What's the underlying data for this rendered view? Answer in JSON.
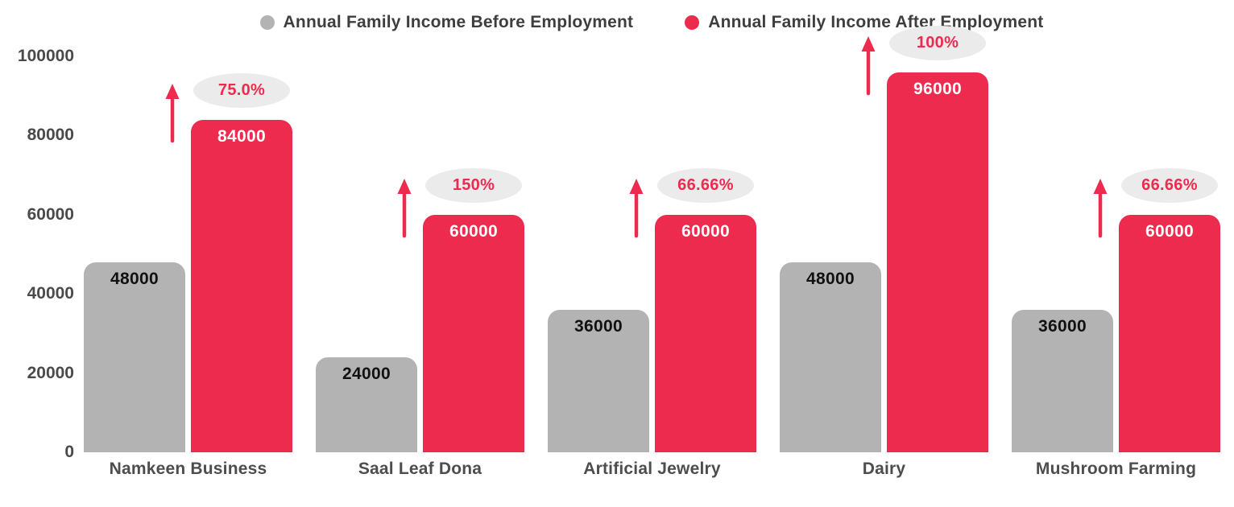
{
  "chart_data": {
    "type": "bar",
    "title": "",
    "categories": [
      "Namkeen Business",
      "Saal Leaf Dona",
      "Artificial Jewelry",
      "Dairy",
      "Mushroom Farming"
    ],
    "series": [
      {
        "name": "Annual Family Income Before Employment",
        "color": "#b3b3b3",
        "values": [
          48000,
          24000,
          36000,
          48000,
          36000
        ]
      },
      {
        "name": "Annual Family Income After Employment",
        "color": "#ed2b4e",
        "values": [
          84000,
          60000,
          60000,
          96000,
          60000
        ]
      }
    ],
    "percent_increase_labels": [
      "75.0%",
      "150%",
      "66.66%",
      "100%",
      "66.66%"
    ],
    "y_ticks": [
      0,
      20000,
      40000,
      60000,
      80000,
      100000
    ],
    "ylim": [
      0,
      100000
    ],
    "xlabel": "",
    "ylabel": "",
    "grid": false,
    "legend_position": "top-center",
    "colors": {
      "before_bar": "#b3b3b3",
      "after_bar": "#ed2b4e",
      "before_value_text": "#111111",
      "after_value_text": "#ffffff",
      "bubble_background": "#ebebeb",
      "bubble_text": "#ed2b4e",
      "arrow": "#ed2b4e",
      "axis_text": "#4a4a4a",
      "legend_text": "#3e3e3e"
    }
  }
}
